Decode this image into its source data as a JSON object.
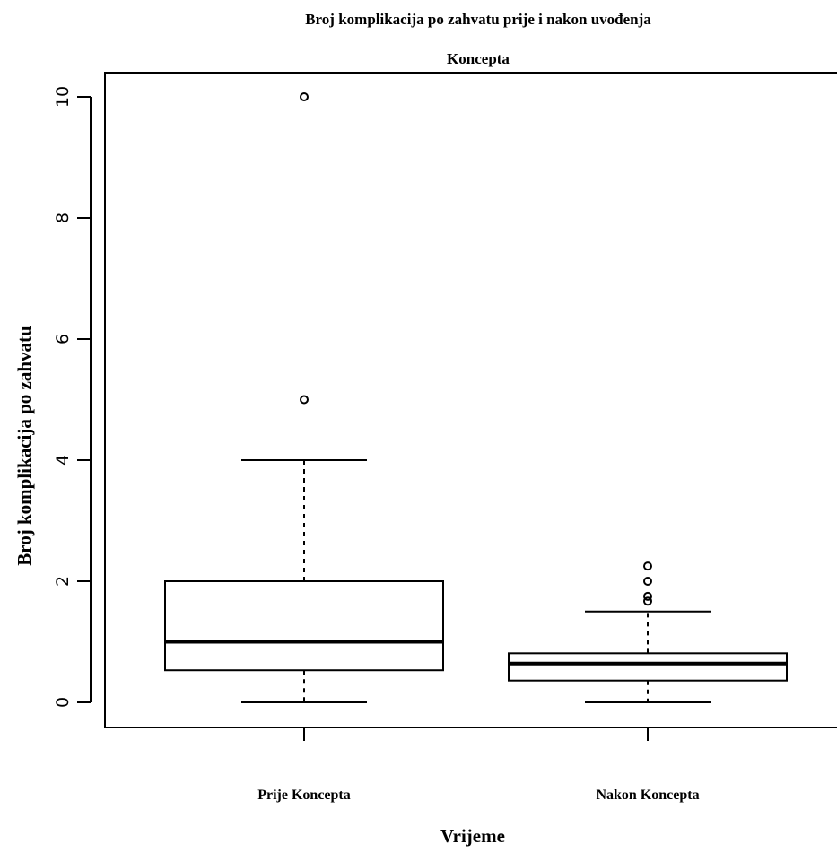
{
  "chart_data": {
    "type": "boxplot",
    "title_line1": "Broj komplikacija po zahvatu prije i nakon uvođenja",
    "title_line2": "Koncepta",
    "xlabel": "Vrijeme",
    "ylabel": "Broj komplikacija po zahvatu",
    "categories": [
      "Prije Koncepta",
      "Nakon Koncepta"
    ],
    "yticks": [
      "0",
      "2",
      "4",
      "6",
      "8",
      "10"
    ],
    "ylim": [
      0,
      10
    ],
    "boxes": [
      {
        "category": "Prije Koncepta",
        "whisker_low": 0,
        "q1": 0.53,
        "median": 1.0,
        "q3": 2.0,
        "whisker_high": 4.0,
        "outliers": [
          5.0,
          10.0
        ]
      },
      {
        "category": "Nakon Koncepta",
        "whisker_low": 0,
        "q1": 0.36,
        "median": 0.64,
        "q3": 0.81,
        "whisker_high": 1.5,
        "outliers": [
          1.67,
          1.75,
          2.0,
          2.25
        ]
      }
    ],
    "colors": {
      "stroke": "#000000",
      "background": "#ffffff"
    }
  }
}
